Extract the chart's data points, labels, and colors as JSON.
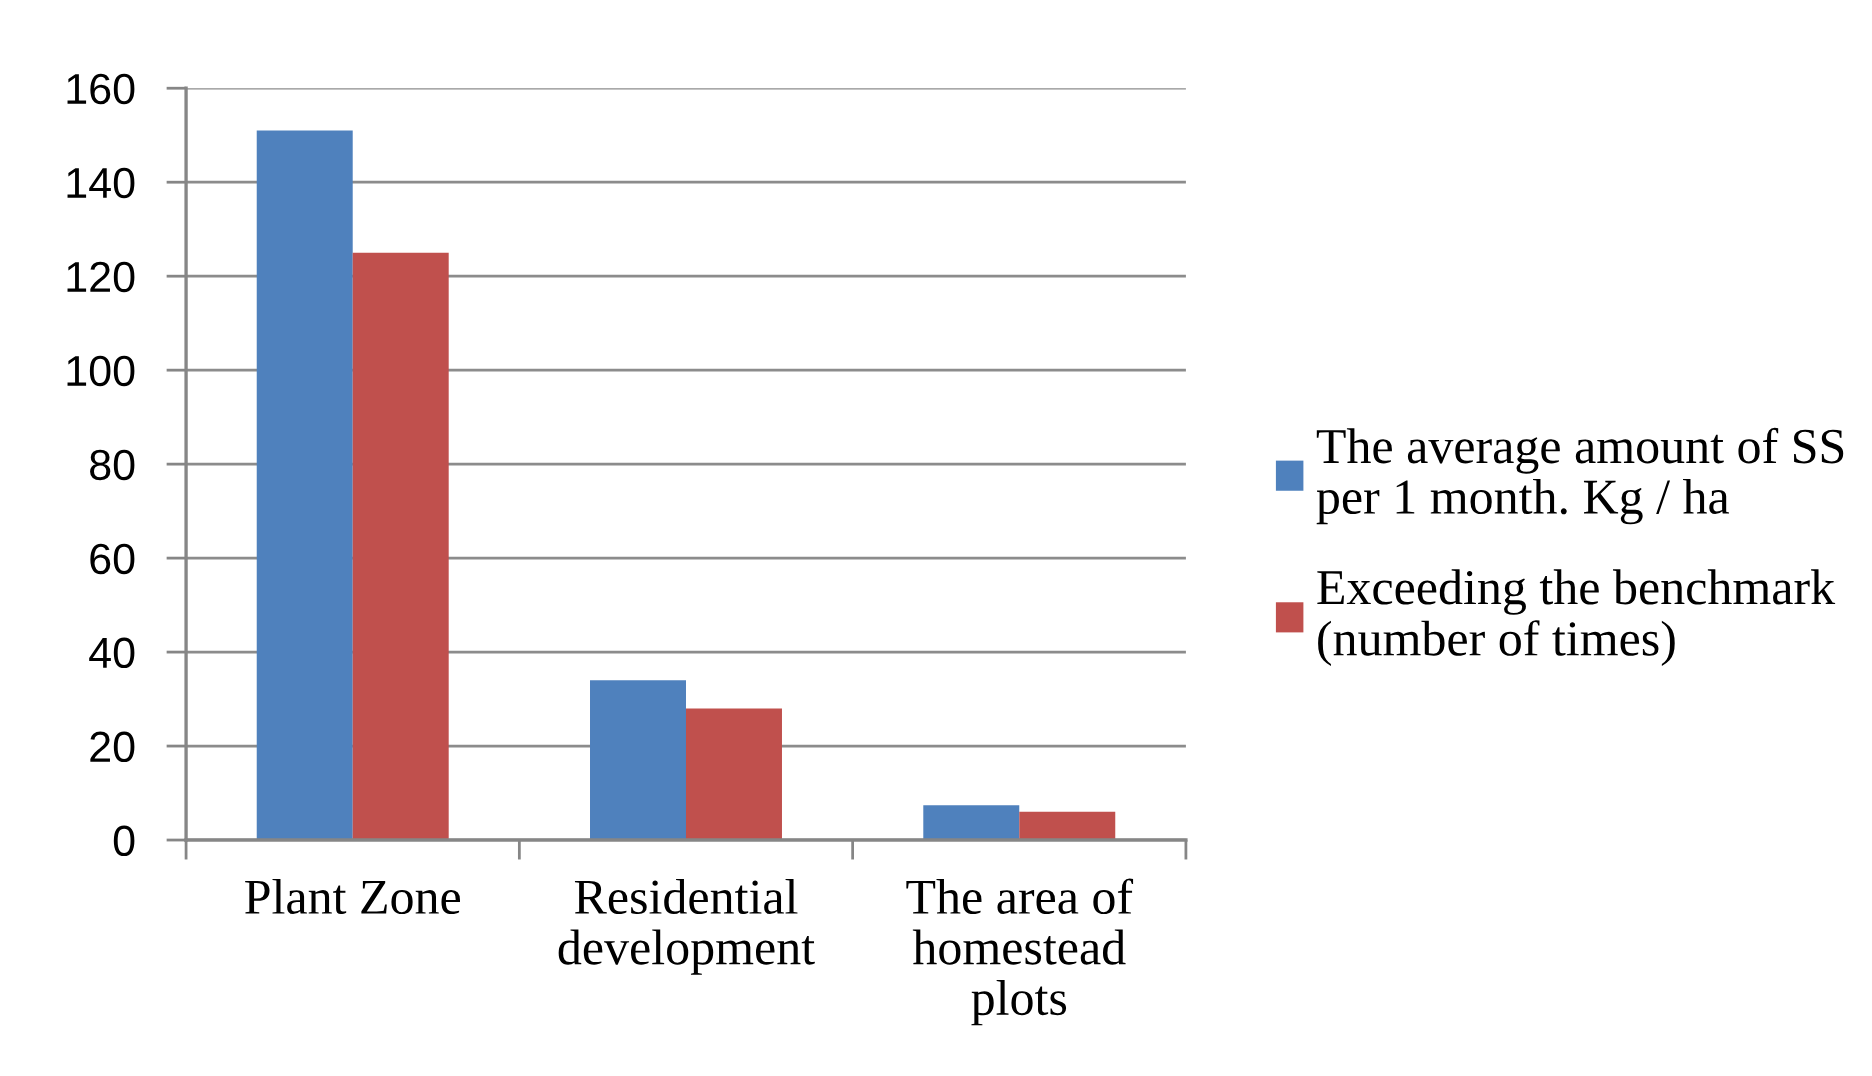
{
  "chart_data": {
    "type": "bar",
    "categories": [
      "Plant Zone",
      "Residential development",
      "The area of homestead plots"
    ],
    "series": [
      {
        "name": "The average amount of SS per 1 month. Kg / ha",
        "color": "#4f81bd",
        "values": [
          151,
          34,
          7.4
        ]
      },
      {
        "name": "Exceeding the benchmark (number of times)",
        "color": "#c0504d",
        "values": [
          125,
          28,
          6
        ]
      }
    ],
    "ylim": [
      0,
      160
    ],
    "yticks": [
      0,
      20,
      40,
      60,
      80,
      100,
      120,
      140,
      160
    ],
    "grid": "y",
    "legend": "right"
  }
}
